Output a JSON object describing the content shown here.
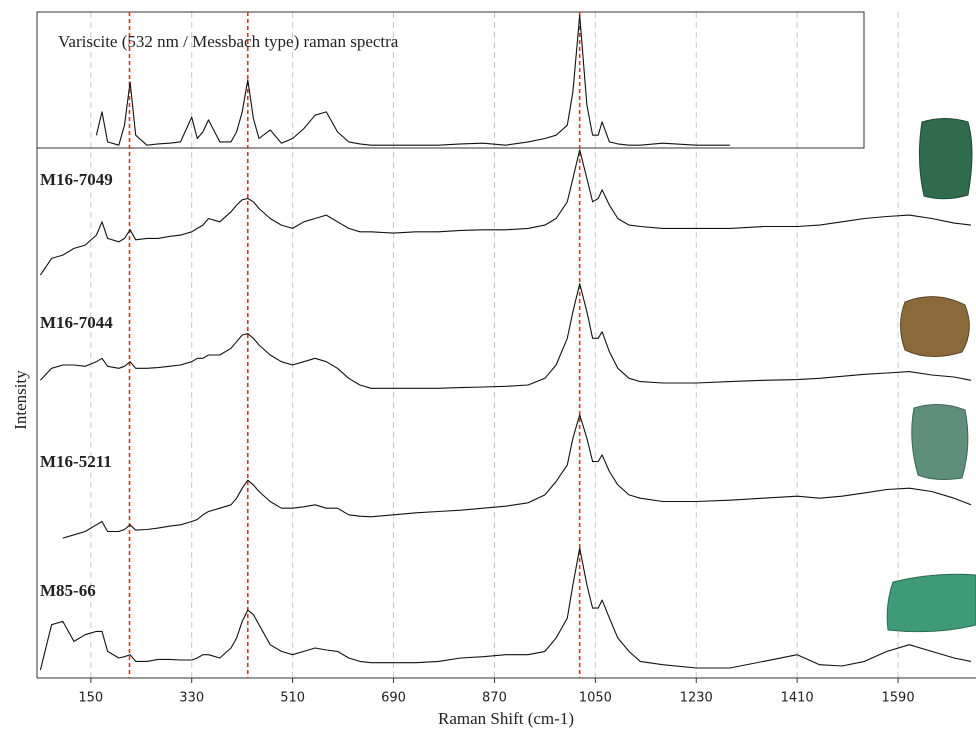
{
  "chart_data": {
    "type": "line",
    "x_label": "Raman Shift (cm-1)",
    "y_label": "Intensity",
    "xlim": [
      54,
      1729
    ],
    "ylim": [
      0,
      100
    ],
    "xticks": [
      150,
      330,
      510,
      690,
      870,
      1050,
      1230,
      1410,
      1590
    ],
    "grid": true,
    "reference_lines": [
      219,
      430,
      1022
    ],
    "reference_color": "#e03020",
    "x": [
      60,
      80,
      100,
      120,
      140,
      160,
      170,
      180,
      200,
      210,
      220,
      230,
      250,
      270,
      290,
      310,
      330,
      340,
      350,
      360,
      380,
      400,
      410,
      420,
      430,
      440,
      450,
      470,
      490,
      510,
      530,
      550,
      570,
      590,
      610,
      630,
      650,
      690,
      730,
      770,
      810,
      850,
      890,
      930,
      960,
      980,
      1000,
      1010,
      1022,
      1035,
      1045,
      1055,
      1062,
      1075,
      1090,
      1110,
      1130,
      1170,
      1230,
      1290,
      1350,
      1410,
      1450,
      1490,
      1530,
      1570,
      1610,
      1650,
      1690,
      1720
    ],
    "series": [
      {
        "name": "Variscite (532 nm / Messbach type) raman spectra",
        "color": "#111111",
        "values": [
          null,
          null,
          null,
          null,
          null,
          81.5,
          85,
          80.5,
          80,
          83,
          89.5,
          81.5,
          80,
          80.2,
          80.3,
          80.5,
          84.2,
          81,
          82,
          83.8,
          80.5,
          80.5,
          82,
          85,
          89.8,
          84,
          81,
          82.3,
          80.3,
          81,
          82.5,
          84.5,
          85,
          82,
          80.5,
          80.2,
          80,
          80,
          80,
          80,
          80.2,
          80.3,
          80,
          80.5,
          81,
          81.5,
          83,
          88,
          99.5,
          86,
          81.5,
          81.5,
          83.5,
          80.5,
          80.2,
          80,
          80,
          80.3,
          80,
          80,
          null,
          null,
          null,
          null,
          null,
          null,
          null,
          null,
          null,
          null
        ]
      },
      {
        "name": "M16-7049",
        "color": "#111111",
        "values": [
          60.5,
          63,
          63.5,
          64.5,
          65,
          66.5,
          68.5,
          66,
          65.5,
          66,
          67.3,
          65.8,
          66,
          66,
          66.3,
          66.5,
          67,
          67.5,
          68,
          69,
          68.5,
          70,
          71,
          71.8,
          72,
          71.5,
          70.5,
          69,
          68,
          67.5,
          68.5,
          69,
          69.5,
          68.5,
          67.5,
          67,
          67,
          66.8,
          67,
          67,
          67.2,
          67.3,
          67.3,
          67.5,
          68,
          69,
          71.5,
          75,
          79.3,
          75,
          71.5,
          72,
          73.3,
          71,
          69,
          68,
          67.8,
          67.5,
          67.5,
          67.5,
          67.8,
          67.8,
          68,
          68.5,
          69,
          69.3,
          69.5,
          69,
          68.3,
          68
        ]
      },
      {
        "name": "M16-7044",
        "color": "#111111",
        "values": [
          44.7,
          46.5,
          47,
          47,
          46.8,
          47.5,
          48,
          46.8,
          46.5,
          46.8,
          47.5,
          46.5,
          46.5,
          46.6,
          46.8,
          47,
          47.5,
          48,
          48,
          48.5,
          48.5,
          49.5,
          50.5,
          51.5,
          51.7,
          51,
          50,
          48.5,
          47.5,
          47,
          47.5,
          48,
          47.5,
          46.5,
          45,
          44,
          43.5,
          43.5,
          43.5,
          43.5,
          43.6,
          43.7,
          43.8,
          44,
          45,
          47,
          51,
          55,
          59.2,
          55,
          51,
          51,
          52,
          49,
          46.5,
          45,
          44.5,
          44.3,
          44.3,
          44.5,
          44.7,
          44.8,
          45,
          45.3,
          45.6,
          45.8,
          46,
          45.5,
          45.2,
          44.7
        ]
      },
      {
        "name": "M16-5211",
        "color": "#111111",
        "values": [
          null,
          null,
          21,
          21.5,
          22,
          23,
          23.5,
          22,
          22,
          22.3,
          23,
          22.2,
          22.3,
          22.5,
          22.8,
          23,
          23.5,
          23.8,
          24.5,
          25,
          25.5,
          26,
          27,
          28.5,
          29.7,
          29,
          28,
          26.5,
          25.5,
          25.5,
          25.7,
          26,
          25.5,
          25.5,
          24.5,
          24.3,
          24.2,
          24.5,
          24.8,
          25,
          25.2,
          25.5,
          25.8,
          26.3,
          27.5,
          29.5,
          32,
          36,
          39.5,
          36,
          32.5,
          32.5,
          33.5,
          31,
          29,
          27.5,
          27,
          26.5,
          26.5,
          26.7,
          27,
          27.3,
          27,
          27.3,
          27.8,
          28.3,
          28.5,
          28,
          27,
          26
        ]
      },
      {
        "name": "M85-66",
        "color": "#111111",
        "values": [
          1.2,
          8,
          8.5,
          5.5,
          6.5,
          7,
          7,
          4,
          3,
          3.2,
          3.5,
          2.5,
          2.5,
          2.8,
          2.8,
          2.7,
          2.7,
          3,
          3.5,
          3.5,
          3,
          4.5,
          6,
          8.5,
          10.2,
          9.5,
          8,
          5,
          4,
          3.5,
          4,
          4.5,
          4.2,
          4,
          3,
          2.5,
          2.3,
          2.3,
          2.3,
          2.5,
          3,
          3.2,
          3.5,
          3.5,
          4,
          6,
          9,
          14,
          19.5,
          14,
          10.5,
          10.5,
          11.7,
          9,
          6,
          4,
          2.5,
          2,
          1.5,
          1.5,
          2.5,
          3.5,
          2,
          1.8,
          2.5,
          4,
          5,
          4,
          3,
          2.5
        ]
      }
    ]
  }
}
